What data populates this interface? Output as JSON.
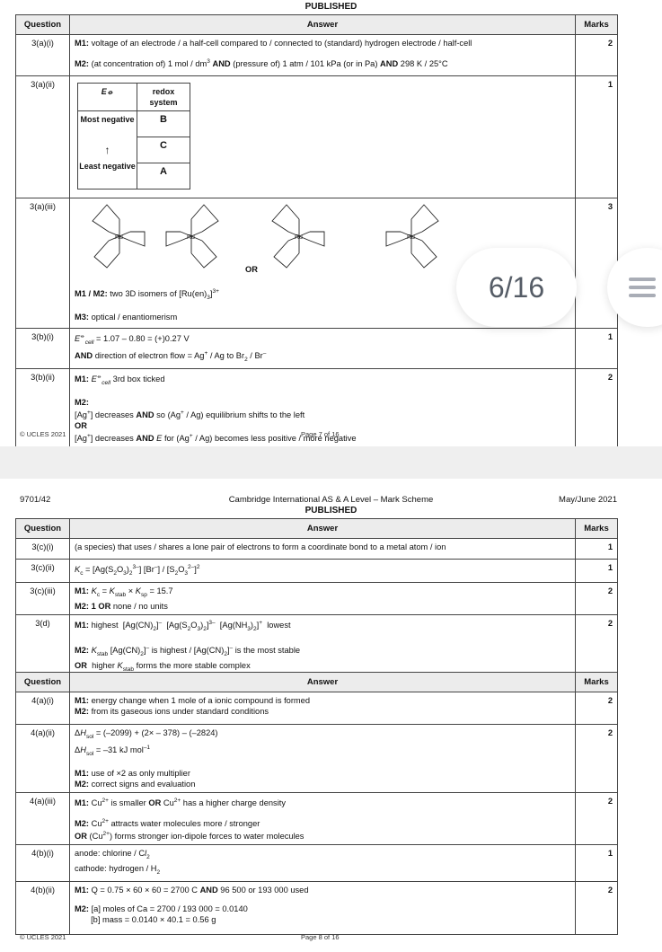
{
  "page1": {
    "published": "PUBLISHED",
    "headers": {
      "question": "Question",
      "answer": "Answer",
      "marks": "Marks"
    },
    "rows": [
      {
        "q": "3(a)(i)",
        "marks": "2",
        "lines": [
          [
            {
              "b": "M1:"
            },
            {
              "t": " voltage of an electrode / a half-cell compared to / connected to (standard) hydrogen electrode / half-cell"
            }
          ],
          [],
          [
            {
              "b": "M2:"
            },
            {
              "t": " (at concentration of) 1 mol / dm"
            },
            {
              "sup": "3"
            },
            {
              "t": " "
            },
            {
              "b": "AND"
            },
            {
              "t": " (pressure of) 1 atm / 101 kPa (or in Pa) "
            },
            {
              "b": "AND"
            },
            {
              "t": " 298 K / 25°C"
            }
          ]
        ]
      },
      {
        "q": "3(a)(ii)",
        "marks": "1",
        "redox": {
          "col1": "E⦵",
          "col2": "redox system",
          "most": "Most negative",
          "arrow": "↑",
          "least": "Least negative",
          "values": [
            "B",
            "C",
            "A"
          ]
        }
      },
      {
        "q": "3(a)(iii)",
        "marks": "3",
        "or": "OR",
        "lines": [
          [
            {
              "b": "M1 / M2:"
            },
            {
              "t": " two 3D isomers of [Ru(en)"
            },
            {
              "sub": "3"
            },
            {
              "t": "]"
            },
            {
              "sup": "3+"
            }
          ],
          [],
          [
            {
              "b": "M3:"
            },
            {
              "t": " optical / enantiomerism"
            }
          ]
        ]
      },
      {
        "q": "3(b)(i)",
        "marks": "1",
        "lines": [
          [
            {
              "i": "E"
            },
            {
              "sup": "⦵"
            },
            {
              "isub": "cell"
            },
            {
              "t": " = 1.07 – 0.80 = (+)0.27 V"
            }
          ],
          [
            {
              "b": "AND"
            },
            {
              "t": " direction of electron flow = Ag"
            },
            {
              "sup": "+"
            },
            {
              "t": " / Ag to Br"
            },
            {
              "sub": "2"
            },
            {
              "t": " / Br"
            },
            {
              "sup": "–"
            }
          ]
        ]
      },
      {
        "q": "3(b)(ii)",
        "marks": "2",
        "lines": [
          [
            {
              "b": "M1:"
            },
            {
              "t": " "
            },
            {
              "i": "E"
            },
            {
              "sup": "⦵"
            },
            {
              "isub": "cell"
            },
            {
              "t": " 3rd box ticked"
            }
          ],
          [],
          [
            {
              "b": "M2:"
            }
          ],
          [
            {
              "t": "[Ag"
            },
            {
              "sup": "+"
            },
            {
              "t": "] decreases "
            },
            {
              "b": "AND"
            },
            {
              "t": " so (Ag"
            },
            {
              "sup": "+"
            },
            {
              "t": " / Ag) equilibrium shifts to the left"
            }
          ],
          [
            {
              "b": "OR"
            }
          ],
          [
            {
              "t": "[Ag"
            },
            {
              "sup": "+"
            },
            {
              "t": "] decreases "
            },
            {
              "b": "AND"
            },
            {
              "t": " "
            },
            {
              "i": "E"
            },
            {
              "t": " for (Ag"
            },
            {
              "sup": "+"
            },
            {
              "t": " / Ag) becomes less positive / more negative"
            }
          ]
        ]
      }
    ],
    "footer_left": "© UCLES 2021",
    "footer_center": "Page 7 of 16"
  },
  "page2": {
    "code": "9701/42",
    "title": "Cambridge International AS & A Level – Mark Scheme",
    "published": "PUBLISHED",
    "session": "May/June 2021",
    "headers": {
      "question": "Question",
      "answer": "Answer",
      "marks": "Marks"
    },
    "table1": [
      {
        "q": "3(c)(i)",
        "marks": "1",
        "lines": [
          [
            {
              "t": "(a species) that uses / shares a lone pair of electrons to form a coordinate bond to a metal atom / ion"
            }
          ]
        ]
      },
      {
        "q": "3(c)(ii)",
        "marks": "1",
        "lines": [
          [
            {
              "i": "K"
            },
            {
              "sub": "c"
            },
            {
              "t": " = [Ag(S"
            },
            {
              "sub": "2"
            },
            {
              "t": "O"
            },
            {
              "sub": "3"
            },
            {
              "t": ")"
            },
            {
              "sub": "2"
            },
            {
              "sup": "3–"
            },
            {
              "t": "] [Br"
            },
            {
              "sup": "–"
            },
            {
              "t": "] / [S"
            },
            {
              "sub": "2"
            },
            {
              "t": "O"
            },
            {
              "sub": "3"
            },
            {
              "sup": "2–"
            },
            {
              "t": "]"
            },
            {
              "sup": "2"
            }
          ]
        ]
      },
      {
        "q": "3(c)(iii)",
        "marks": "2",
        "lines": [
          [
            {
              "b": "M1:"
            },
            {
              "t": " "
            },
            {
              "i": "K"
            },
            {
              "sub": "c"
            },
            {
              "t": " = "
            },
            {
              "i": "K"
            },
            {
              "sub": "stab"
            },
            {
              "t": " × "
            },
            {
              "i": "K"
            },
            {
              "sub": "sp"
            },
            {
              "t": " = 15.7"
            }
          ],
          [
            {
              "b": "M2: 1 OR"
            },
            {
              "t": " none / no units"
            }
          ]
        ]
      },
      {
        "q": "3(d)",
        "marks": "2",
        "lines": [
          [
            {
              "b": "M1:"
            },
            {
              "t": " highest  [Ag(CN)"
            },
            {
              "sub": "2"
            },
            {
              "t": "]"
            },
            {
              "sup": "–"
            },
            {
              "t": "  [Ag(S"
            },
            {
              "sub": "2"
            },
            {
              "t": "O"
            },
            {
              "sub": "3"
            },
            {
              "t": ")"
            },
            {
              "sub": "2"
            },
            {
              "t": "]"
            },
            {
              "sup": "3–"
            },
            {
              "t": "  [Ag(NH"
            },
            {
              "sub": "3"
            },
            {
              "t": ")"
            },
            {
              "sub": "2"
            },
            {
              "t": "]"
            },
            {
              "sup": "+"
            },
            {
              "t": "  lowest"
            }
          ],
          [],
          [
            {
              "b": "M2:"
            },
            {
              "t": " "
            },
            {
              "i": "K"
            },
            {
              "sub": "stab"
            },
            {
              "t": " [Ag(CN)"
            },
            {
              "sub": "2"
            },
            {
              "t": "]"
            },
            {
              "sup": "–"
            },
            {
              "t": " is highest / [Ag(CN)"
            },
            {
              "sub": "2"
            },
            {
              "t": "]"
            },
            {
              "sup": "–"
            },
            {
              "t": " is the most stable"
            }
          ],
          [
            {
              "b": "OR"
            },
            {
              "t": "  higher "
            },
            {
              "i": "K"
            },
            {
              "sub": "stab"
            },
            {
              "t": " forms the more stable complex"
            }
          ]
        ]
      }
    ],
    "table2": [
      {
        "q": "4(a)(i)",
        "marks": "2",
        "lines": [
          [
            {
              "b": "M1:"
            },
            {
              "t": " energy change when 1 mole of a ionic compound is formed"
            }
          ],
          [
            {
              "b": "M2:"
            },
            {
              "t": " from its gaseous ions under standard conditions"
            }
          ]
        ]
      },
      {
        "q": "4(a)(ii)",
        "marks": "2",
        "lines": [
          [
            {
              "t": "Δ"
            },
            {
              "i": "H"
            },
            {
              "sub": "sol"
            },
            {
              "t": " = (–2099) + (2× – 378) – (–2824)"
            }
          ],
          [
            {
              "t": "Δ"
            },
            {
              "i": "H"
            },
            {
              "sub": "sol"
            },
            {
              "t": " = –31 kJ mol"
            },
            {
              "sup": "–1"
            }
          ],
          [],
          [
            {
              "b": "M1:"
            },
            {
              "t": " use of ×2 as only multiplier"
            }
          ],
          [
            {
              "b": "M2:"
            },
            {
              "t": " correct signs and evaluation"
            }
          ]
        ]
      },
      {
        "q": "4(a)(iii)",
        "marks": "2",
        "lines": [
          [
            {
              "b": "M1:"
            },
            {
              "t": " Cu"
            },
            {
              "sup": "2+"
            },
            {
              "t": " is smaller "
            },
            {
              "b": "OR"
            },
            {
              "t": " Cu"
            },
            {
              "sup": "2+"
            },
            {
              "t": " has a higher charge density"
            }
          ],
          [],
          [
            {
              "b": "M2:"
            },
            {
              "t": " Cu"
            },
            {
              "sup": "2+"
            },
            {
              "t": " attracts water molecules more / stronger"
            }
          ],
          [
            {
              "b": "OR"
            },
            {
              "t": " (Cu"
            },
            {
              "sup": "2+"
            },
            {
              "t": ") forms stronger ion-dipole forces to water molecules"
            }
          ]
        ]
      },
      {
        "q": "4(b)(i)",
        "marks": "1",
        "lines": [
          [
            {
              "t": "anode: chlorine / C"
            },
            {
              "i": "l"
            },
            {
              "sub": "2"
            }
          ],
          [
            {
              "t": "cathode: hydrogen / H"
            },
            {
              "sub": "2"
            }
          ]
        ]
      },
      {
        "q": "4(b)(ii)",
        "marks": "2",
        "lines": [
          [
            {
              "b": "M1:"
            },
            {
              "t": " Q = 0.75 × 60 × 60 = 2700 C "
            },
            {
              "b": "AND"
            },
            {
              "t": " 96 500 or 193 000 used"
            }
          ],
          [],
          [
            {
              "b": "M2:"
            },
            {
              "t": " [a] moles of Ca = 2700 / 193 000 = 0.0140"
            }
          ],
          [
            {
              "t": "       [b] mass = 0.0140 × 40.1 = 0.56 g"
            }
          ]
        ]
      }
    ],
    "footer_left": "© UCLES 2021",
    "footer_center": "Page 8 of 16"
  },
  "overlay": {
    "page_indicator": "6/16",
    "menu_icon": "hamburger-menu-icon"
  }
}
